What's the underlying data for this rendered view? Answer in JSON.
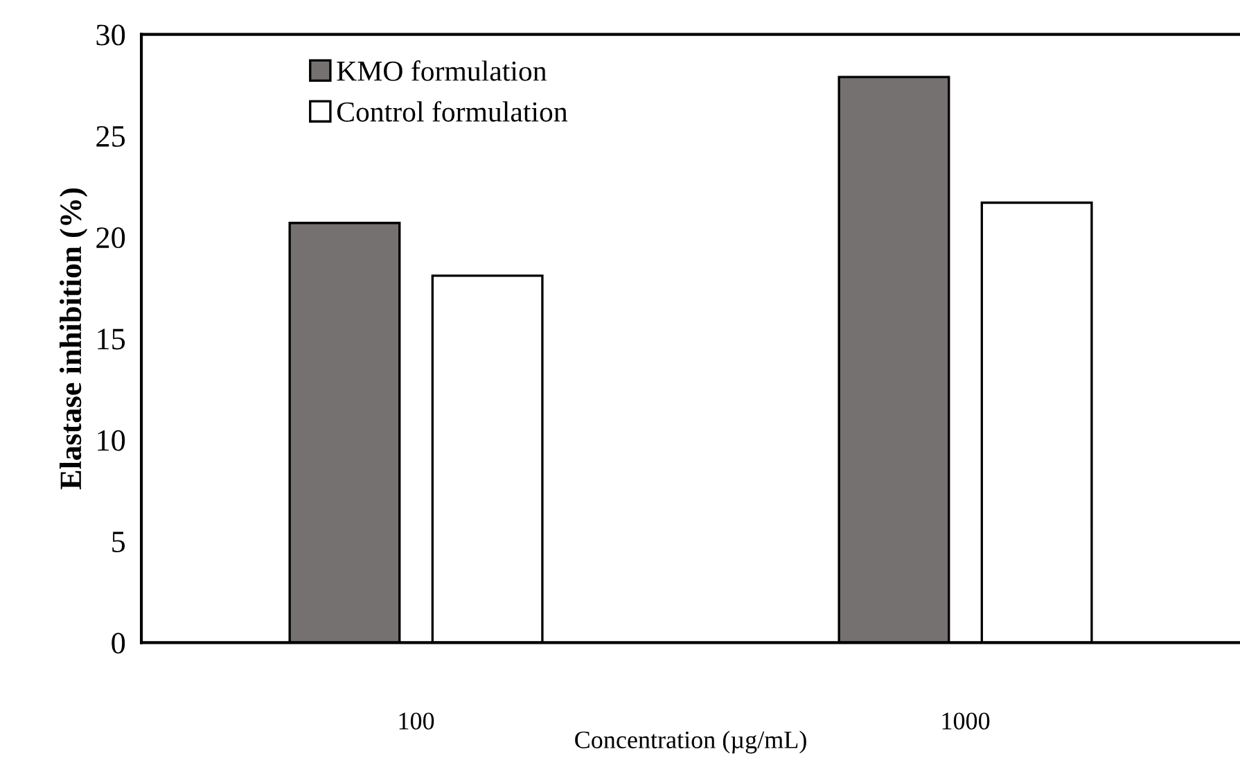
{
  "chart_data": {
    "type": "bar",
    "xlabel": "Concentration (µg/mL)",
    "ylabel": "Elastase inhibition (%)",
    "categories": [
      "100",
      "1000"
    ],
    "series": [
      {
        "name": "KMO formulation",
        "color": "#767171",
        "values": [
          20.7,
          27.9
        ]
      },
      {
        "name": "Control formulation",
        "color": "#ffffff",
        "values": [
          18.1,
          21.7
        ]
      }
    ],
    "ylim": [
      0,
      30
    ],
    "yticks": [
      0,
      5,
      10,
      15,
      20,
      25,
      30
    ],
    "grid": false,
    "legend": "top left"
  }
}
